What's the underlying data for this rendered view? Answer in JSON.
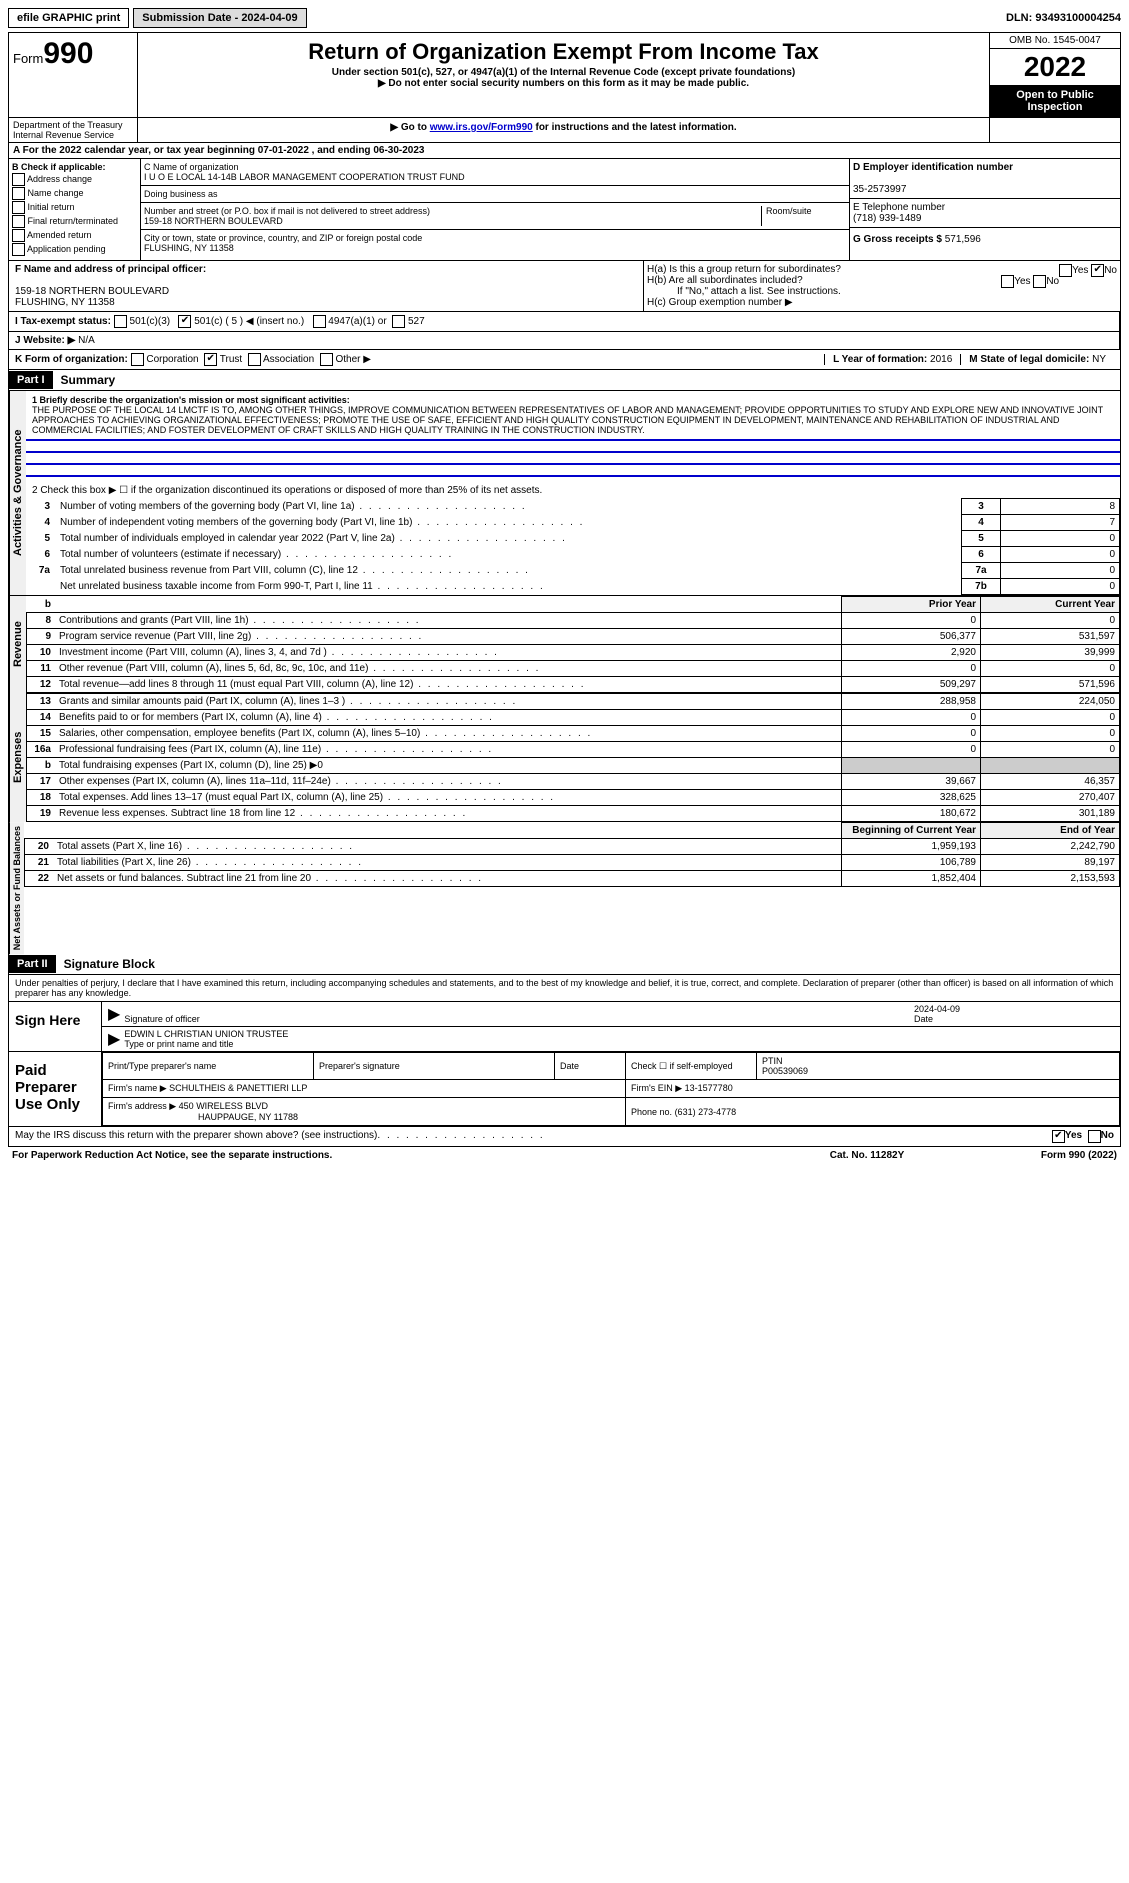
{
  "topbar": {
    "efile": "efile GRAPHIC print",
    "submission": "Submission Date - 2024-04-09",
    "dln": "DLN: 93493100004254"
  },
  "header": {
    "form_label": "Form",
    "form_number": "990",
    "title": "Return of Organization Exempt From Income Tax",
    "subtitle": "Under section 501(c), 527, or 4947(a)(1) of the Internal Revenue Code (except private foundations)",
    "note1": "▶ Do not enter social security numbers on this form as it may be made public.",
    "note2_pre": "▶ Go to ",
    "note2_link": "www.irs.gov/Form990",
    "note2_post": " for instructions and the latest information.",
    "dept": "Department of the Treasury",
    "irs": "Internal Revenue Service",
    "omb": "OMB No. 1545-0047",
    "year": "2022",
    "open_public": "Open to Public Inspection"
  },
  "line_a": "A For the 2022 calendar year, or tax year beginning 07-01-2022   , and ending 06-30-2023",
  "bcheck": {
    "label": "B Check if applicable:",
    "items": [
      "Address change",
      "Name change",
      "Initial return",
      "Final return/terminated",
      "Amended return",
      "Application pending"
    ]
  },
  "org": {
    "c_label": "C Name of organization",
    "name": "I U O E LOCAL 14-14B LABOR MANAGEMENT COOPERATION TRUST FUND",
    "dba_label": "Doing business as",
    "addr_label": "Number and street (or P.O. box if mail is not delivered to street address)",
    "room_label": "Room/suite",
    "addr": "159-18 NORTHERN BOULEVARD",
    "city_label": "City or town, state or province, country, and ZIP or foreign postal code",
    "city": "FLUSHING, NY  11358"
  },
  "right": {
    "d_label": "D Employer identification number",
    "ein": "35-2573997",
    "e_label": "E Telephone number",
    "phone": "(718) 939-1489",
    "g_label": "G Gross receipts $",
    "g_val": "571,596"
  },
  "f_section": {
    "label": "F  Name and address of principal officer:",
    "addr": "159-18 NORTHERN BOULEVARD",
    "city": "FLUSHING, NY  11358"
  },
  "h_section": {
    "ha": "H(a)  Is this a group return for subordinates?",
    "hb": "H(b)  Are all subordinates included?",
    "hb_note": "If \"No,\" attach a list. See instructions.",
    "hc": "H(c)  Group exemption number ▶"
  },
  "i_section": {
    "label": "I   Tax-exempt status:",
    "opts": [
      "501(c)(3)",
      "501(c) ( 5 ) ◀ (insert no.)",
      "4947(a)(1) or",
      "527"
    ]
  },
  "j_section": {
    "label": "J   Website: ▶",
    "val": "N/A"
  },
  "k_section": {
    "label": "K Form of organization:",
    "opts": [
      "Corporation",
      "Trust",
      "Association",
      "Other ▶"
    ]
  },
  "l_section": {
    "label": "L Year of formation:",
    "val": "2016"
  },
  "m_section": {
    "label": "M State of legal domicile:",
    "val": "NY"
  },
  "part1": {
    "header": "Part I",
    "title": "Summary",
    "side1": "Activities & Governance",
    "side2": "Revenue",
    "side3": "Expenses",
    "side4": "Net Assets or Fund Balances",
    "line1_lbl": "1   Briefly describe the organization's mission or most significant activities:",
    "mission": "THE PURPOSE OF THE LOCAL 14 LMCTF IS TO, AMONG OTHER THINGS, IMPROVE COMMUNICATION BETWEEN REPRESENTATIVES OF LABOR AND MANAGEMENT; PROVIDE OPPORTUNITIES TO STUDY AND EXPLORE NEW AND INNOVATIVE JOINT APPROACHES TO ACHIEVING ORGANIZATIONAL EFFECTIVENESS; PROMOTE THE USE OF SAFE, EFFICIENT AND HIGH QUALITY CONSTRUCTION EQUIPMENT IN DEVELOPMENT, MAINTENANCE AND REHABILITATION OF INDUSTRIAL AND COMMERCIAL FACILITIES; AND FOSTER DEVELOPMENT OF CRAFT SKILLS AND HIGH QUALITY TRAINING IN THE CONSTRUCTION INDUSTRY.",
    "line2": "2   Check this box ▶ ☐ if the organization discontinued its operations or disposed of more than 25% of its net assets.",
    "rows_gov": [
      {
        "n": "3",
        "txt": "Number of voting members of the governing body (Part VI, line 1a)",
        "box": "3",
        "val": "8"
      },
      {
        "n": "4",
        "txt": "Number of independent voting members of the governing body (Part VI, line 1b)",
        "box": "4",
        "val": "7"
      },
      {
        "n": "5",
        "txt": "Total number of individuals employed in calendar year 2022 (Part V, line 2a)",
        "box": "5",
        "val": "0"
      },
      {
        "n": "6",
        "txt": "Total number of volunteers (estimate if necessary)",
        "box": "6",
        "val": "0"
      },
      {
        "n": "7a",
        "txt": "Total unrelated business revenue from Part VIII, column (C), line 12",
        "box": "7a",
        "val": "0"
      },
      {
        "n": "",
        "txt": "Net unrelated business taxable income from Form 990-T, Part I, line 11",
        "box": "7b",
        "val": "0"
      }
    ],
    "col_prior": "Prior Year",
    "col_current": "Current Year",
    "rows_rev": [
      {
        "n": "8",
        "txt": "Contributions and grants (Part VIII, line 1h)",
        "p": "0",
        "c": "0"
      },
      {
        "n": "9",
        "txt": "Program service revenue (Part VIII, line 2g)",
        "p": "506,377",
        "c": "531,597"
      },
      {
        "n": "10",
        "txt": "Investment income (Part VIII, column (A), lines 3, 4, and 7d )",
        "p": "2,920",
        "c": "39,999"
      },
      {
        "n": "11",
        "txt": "Other revenue (Part VIII, column (A), lines 5, 6d, 8c, 9c, 10c, and 11e)",
        "p": "0",
        "c": "0"
      },
      {
        "n": "12",
        "txt": "Total revenue—add lines 8 through 11 (must equal Part VIII, column (A), line 12)",
        "p": "509,297",
        "c": "571,596"
      }
    ],
    "rows_exp": [
      {
        "n": "13",
        "txt": "Grants and similar amounts paid (Part IX, column (A), lines 1–3 )",
        "p": "288,958",
        "c": "224,050"
      },
      {
        "n": "14",
        "txt": "Benefits paid to or for members (Part IX, column (A), line 4)",
        "p": "0",
        "c": "0"
      },
      {
        "n": "15",
        "txt": "Salaries, other compensation, employee benefits (Part IX, column (A), lines 5–10)",
        "p": "0",
        "c": "0"
      },
      {
        "n": "16a",
        "txt": "Professional fundraising fees (Part IX, column (A), line 11e)",
        "p": "0",
        "c": "0"
      },
      {
        "n": "b",
        "txt": "Total fundraising expenses (Part IX, column (D), line 25) ▶0",
        "p": "shade",
        "c": "shade"
      },
      {
        "n": "17",
        "txt": "Other expenses (Part IX, column (A), lines 11a–11d, 11f–24e)",
        "p": "39,667",
        "c": "46,357"
      },
      {
        "n": "18",
        "txt": "Total expenses. Add lines 13–17 (must equal Part IX, column (A), line 25)",
        "p": "328,625",
        "c": "270,407"
      },
      {
        "n": "19",
        "txt": "Revenue less expenses. Subtract line 18 from line 12",
        "p": "180,672",
        "c": "301,189"
      }
    ],
    "col_begin": "Beginning of Current Year",
    "col_end": "End of Year",
    "rows_net": [
      {
        "n": "20",
        "txt": "Total assets (Part X, line 16)",
        "p": "1,959,193",
        "c": "2,242,790"
      },
      {
        "n": "21",
        "txt": "Total liabilities (Part X, line 26)",
        "p": "106,789",
        "c": "89,197"
      },
      {
        "n": "22",
        "txt": "Net assets or fund balances. Subtract line 21 from line 20",
        "p": "1,852,404",
        "c": "2,153,593"
      }
    ]
  },
  "part2": {
    "header": "Part II",
    "title": "Signature Block",
    "penalty": "Under penalties of perjury, I declare that I have examined this return, including accompanying schedules and statements, and to the best of my knowledge and belief, it is true, correct, and complete. Declaration of preparer (other than officer) is based on all information of which preparer has any knowledge.",
    "sign_here": "Sign Here",
    "sig_officer": "Signature of officer",
    "date": "2024-04-09",
    "date_lbl": "Date",
    "officer_name": "EDWIN L CHRISTIAN  UNION TRUSTEE",
    "type_name": "Type or print name and title",
    "paid_prep": "Paid Preparer Use Only",
    "print_name": "Print/Type preparer's name",
    "prep_sig": "Preparer's signature",
    "check_self": "Check ☐ if self-employed",
    "ptin_lbl": "PTIN",
    "ptin": "P00539069",
    "firm_name_lbl": "Firm's name    ▶",
    "firm_name": "SCHULTHEIS & PANETTIERI LLP",
    "firm_ein_lbl": "Firm's EIN ▶",
    "firm_ein": "13-1577780",
    "firm_addr_lbl": "Firm's address ▶",
    "firm_addr": "450 WIRELESS BLVD",
    "firm_city": "HAUPPAUGE, NY  11788",
    "phone_lbl": "Phone no.",
    "phone": "(631) 273-4778",
    "discuss": "May the IRS discuss this return with the preparer shown above? (see instructions)",
    "yes": "Yes",
    "no": "No"
  },
  "footer": {
    "left": "For Paperwork Reduction Act Notice, see the separate instructions.",
    "mid": "Cat. No. 11282Y",
    "right": "Form 990 (2022)"
  }
}
